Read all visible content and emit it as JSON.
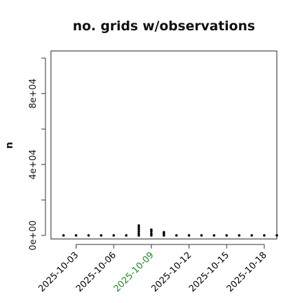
{
  "chart_data": {
    "type": "scatter",
    "title": "no. grids w/observations",
    "xlabel": "",
    "ylabel": "n",
    "ylim": [
      -2000,
      104000
    ],
    "xlim": [
      "2025-10-01",
      "2025-10-19"
    ],
    "y_ticks": [
      {
        "value": 0,
        "label": "0e+00"
      },
      {
        "value": 40000,
        "label": "4e+04"
      },
      {
        "value": 80000,
        "label": "8e+04"
      }
    ],
    "y_minor_ticks": [
      0,
      20000,
      40000,
      60000,
      80000,
      100000
    ],
    "x_ticks": [
      {
        "value": "2025-10-03",
        "label": "2025-10-03",
        "color": "#000000"
      },
      {
        "value": "2025-10-06",
        "label": "2025-10-06",
        "color": "#000000"
      },
      {
        "value": "2025-10-09",
        "label": "2025-10-09",
        "color": "#1f8a1f"
      },
      {
        "value": "2025-10-12",
        "label": "2025-10-12",
        "color": "#000000"
      },
      {
        "value": "2025-10-15",
        "label": "2025-10-15",
        "color": "#000000"
      },
      {
        "value": "2025-10-18",
        "label": "2025-10-18",
        "color": "#000000"
      }
    ],
    "x_minor_ticks": [
      "2025-10-03",
      "2025-10-04",
      "2025-10-05",
      "2025-10-06",
      "2025-10-07",
      "2025-10-08",
      "2025-10-09",
      "2025-10-10",
      "2025-10-11",
      "2025-10-12",
      "2025-10-13",
      "2025-10-14",
      "2025-10-15",
      "2025-10-16",
      "2025-10-17",
      "2025-10-18"
    ],
    "series": [
      {
        "color": "#000000",
        "points": [
          {
            "x": "2025-10-02",
            "y": 0
          },
          {
            "x": "2025-10-03",
            "y": 0
          },
          {
            "x": "2025-10-04",
            "y": 0
          },
          {
            "x": "2025-10-05",
            "y": 0
          },
          {
            "x": "2025-10-06",
            "y": 0
          },
          {
            "x": "2025-10-07",
            "y": 0
          },
          {
            "x": "2025-10-08",
            "y": 0
          },
          {
            "x": "2025-10-08",
            "y": 1000
          },
          {
            "x": "2025-10-08",
            "y": 2200
          },
          {
            "x": "2025-10-08",
            "y": 3400
          },
          {
            "x": "2025-10-08",
            "y": 4600
          },
          {
            "x": "2025-10-08",
            "y": 5600
          },
          {
            "x": "2025-10-09",
            "y": 0
          },
          {
            "x": "2025-10-09",
            "y": 1000
          },
          {
            "x": "2025-10-09",
            "y": 2200
          },
          {
            "x": "2025-10-09",
            "y": 3200
          },
          {
            "x": "2025-10-10",
            "y": 0
          },
          {
            "x": "2025-10-10",
            "y": 1000
          },
          {
            "x": "2025-10-10",
            "y": 1800
          },
          {
            "x": "2025-10-11",
            "y": 0
          },
          {
            "x": "2025-10-12",
            "y": 0
          },
          {
            "x": "2025-10-13",
            "y": 0
          },
          {
            "x": "2025-10-14",
            "y": 0
          },
          {
            "x": "2025-10-15",
            "y": 0
          },
          {
            "x": "2025-10-16",
            "y": 0
          },
          {
            "x": "2025-10-17",
            "y": 0
          },
          {
            "x": "2025-10-18",
            "y": 0
          },
          {
            "x": "2025-10-19",
            "y": 0
          }
        ]
      }
    ],
    "grid": false,
    "legend": "none"
  }
}
